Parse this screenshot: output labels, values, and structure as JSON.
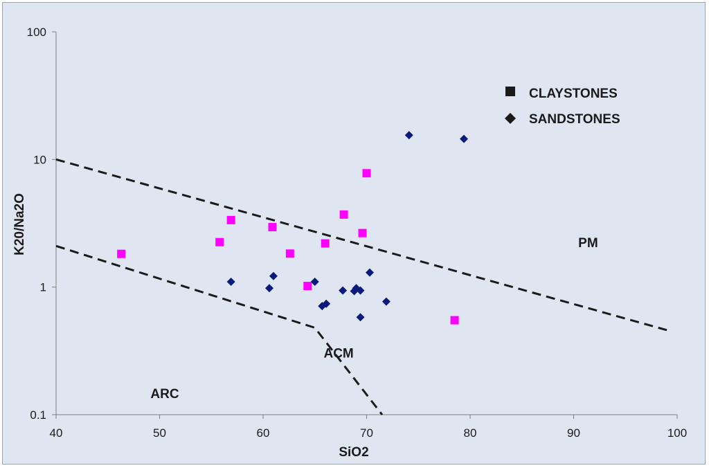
{
  "chart_data": {
    "type": "scatter",
    "title": "",
    "xlabel": "SiO2",
    "ylabel": "K20/Na2O",
    "xlim": [
      40,
      100
    ],
    "ylim": [
      0.1,
      100
    ],
    "yscale": "log",
    "grid": false,
    "legend_position": "top-right",
    "x_ticks": [
      "40",
      "50",
      "60",
      "70",
      "80",
      "90",
      "100"
    ],
    "y_ticks": [
      "0.1",
      "1",
      "10",
      "100"
    ],
    "series": [
      {
        "name": "CLAYSTONES",
        "marker": "square",
        "color": "#ff00ff",
        "points": [
          [
            46.3,
            1.82
          ],
          [
            55.8,
            2.25
          ],
          [
            56.9,
            3.35
          ],
          [
            60.9,
            2.95
          ],
          [
            62.6,
            1.83
          ],
          [
            64.3,
            1.02
          ],
          [
            66.0,
            2.2
          ],
          [
            67.8,
            3.7
          ],
          [
            69.6,
            2.65
          ],
          [
            70.0,
            7.8
          ],
          [
            78.5,
            0.55
          ]
        ]
      },
      {
        "name": "SANDSTONES",
        "marker": "diamond",
        "color": "#0a1a7a",
        "points": [
          [
            56.9,
            1.1
          ],
          [
            60.6,
            0.98
          ],
          [
            61.0,
            1.22
          ],
          [
            65.0,
            1.1
          ],
          [
            65.7,
            0.71
          ],
          [
            66.1,
            0.74
          ],
          [
            67.7,
            0.94
          ],
          [
            68.8,
            0.93
          ],
          [
            69.0,
            0.98
          ],
          [
            69.4,
            0.94
          ],
          [
            69.4,
            0.58
          ],
          [
            70.3,
            1.3
          ],
          [
            71.9,
            0.77
          ],
          [
            74.1,
            15.5
          ],
          [
            79.4,
            14.5
          ]
        ]
      }
    ],
    "boundaries": [
      {
        "points": [
          [
            40,
            10
          ],
          [
            99,
            0.46
          ]
        ]
      },
      {
        "points": [
          [
            40,
            2.1
          ],
          [
            65,
            0.48
          ],
          [
            71.5,
            0.1
          ]
        ]
      }
    ],
    "region_labels": [
      "ARC",
      "ACM",
      "PM"
    ],
    "region_positions": [
      [
        50.5,
        0.135
      ],
      [
        67.3,
        0.28
      ],
      [
        91.4,
        2.05
      ]
    ]
  },
  "legend": {
    "items": [
      {
        "label": "CLAYSTONES",
        "icon": "square-marker-icon"
      },
      {
        "label": "SANDSTONES",
        "icon": "diamond-marker-icon"
      }
    ]
  },
  "colors": {
    "background": "#dfe6f2",
    "axis": "#7f7f7f",
    "boundary": "#1a1a1a",
    "legend_marker": "#1a1a1a"
  }
}
